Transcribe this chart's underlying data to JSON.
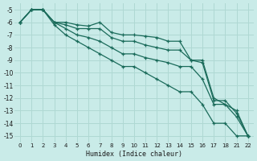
{
  "xlabel": "Humidex (Indice chaleur)",
  "bg_color": "#c9ebe8",
  "grid_color": "#afd8d3",
  "line_color": "#1a6b5a",
  "xlim": [
    -0.5,
    22.5
  ],
  "ylim": [
    -15.5,
    -4.5
  ],
  "xticks": [
    0,
    1,
    2,
    3,
    4,
    5,
    6,
    7,
    8,
    9,
    10,
    11,
    12,
    13,
    14,
    15,
    16,
    17,
    18,
    21,
    22
  ],
  "yticks": [
    -5,
    -6,
    -7,
    -8,
    -9,
    -10,
    -11,
    -12,
    -13,
    -14,
    -15
  ],
  "lines": [
    {
      "x": [
        0,
        1,
        2,
        3,
        4,
        5,
        6,
        7,
        8,
        9,
        10,
        11,
        12,
        13,
        14,
        15,
        16,
        17,
        21,
        22
      ],
      "y": [
        -6.0,
        -5.0,
        -5.0,
        -6.0,
        -6.0,
        -6.2,
        -6.3,
        -6.0,
        -6.8,
        -7.0,
        -7.0,
        -7.1,
        -7.2,
        -7.5,
        -7.5,
        -9.0,
        -9.0,
        -12.0,
        -13.0,
        -15.0
      ]
    },
    {
      "x": [
        0,
        1,
        2,
        3,
        4,
        5,
        6,
        7,
        8,
        9,
        10,
        11,
        12,
        13,
        14,
        15,
        16,
        17,
        18,
        21,
        22
      ],
      "y": [
        -6.0,
        -5.0,
        -5.0,
        -6.0,
        -6.2,
        -6.5,
        -6.5,
        -6.5,
        -7.2,
        -7.5,
        -7.5,
        -7.8,
        -8.0,
        -8.2,
        -8.2,
        -9.0,
        -9.2,
        -12.2,
        -12.2,
        -13.2,
        -15.0
      ]
    },
    {
      "x": [
        0,
        1,
        2,
        3,
        4,
        5,
        6,
        7,
        8,
        9,
        10,
        11,
        12,
        13,
        14,
        15,
        16,
        17,
        18,
        21,
        22
      ],
      "y": [
        -6.0,
        -5.0,
        -5.0,
        -6.0,
        -6.5,
        -7.0,
        -7.2,
        -7.5,
        -8.0,
        -8.5,
        -8.5,
        -8.8,
        -9.0,
        -9.2,
        -9.5,
        -9.5,
        -10.5,
        -12.5,
        -12.5,
        -13.5,
        -15.0
      ]
    },
    {
      "x": [
        0,
        1,
        2,
        3,
        4,
        5,
        6,
        7,
        8,
        9,
        10,
        11,
        12,
        13,
        14,
        15,
        16,
        17,
        18,
        21,
        22
      ],
      "y": [
        -6.0,
        -5.0,
        -5.0,
        -6.2,
        -7.0,
        -7.5,
        -8.0,
        -8.5,
        -9.0,
        -9.5,
        -9.5,
        -10.0,
        -10.5,
        -11.0,
        -11.5,
        -11.5,
        -12.5,
        -14.0,
        -14.0,
        -15.0,
        -15.0
      ]
    }
  ]
}
